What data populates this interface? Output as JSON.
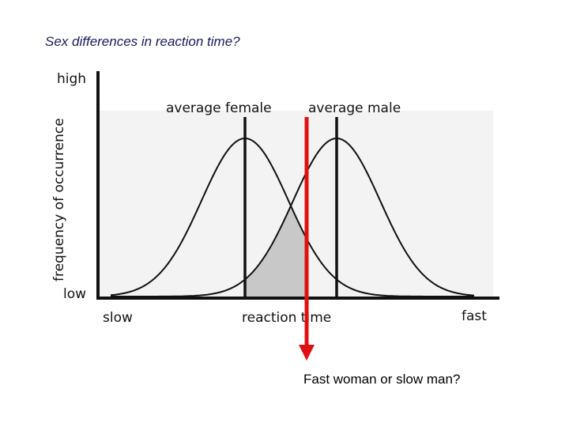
{
  "slide": {
    "title": "Sex differences in reaction time?",
    "caption": "Fast woman or slow man?"
  },
  "figure": {
    "y_axis_label": "frequency of occurrence",
    "y_high_label": "high",
    "y_low_label": "low",
    "x_axis_label": "reaction time",
    "x_left_label": "slow",
    "x_right_label": "fast",
    "female_label": "average female",
    "male_label": "average male"
  },
  "colors": {
    "curve": "#111111",
    "overlap_fill": "#c8c8c8",
    "marker": "#e01010",
    "title": "#1a1a5e"
  }
}
